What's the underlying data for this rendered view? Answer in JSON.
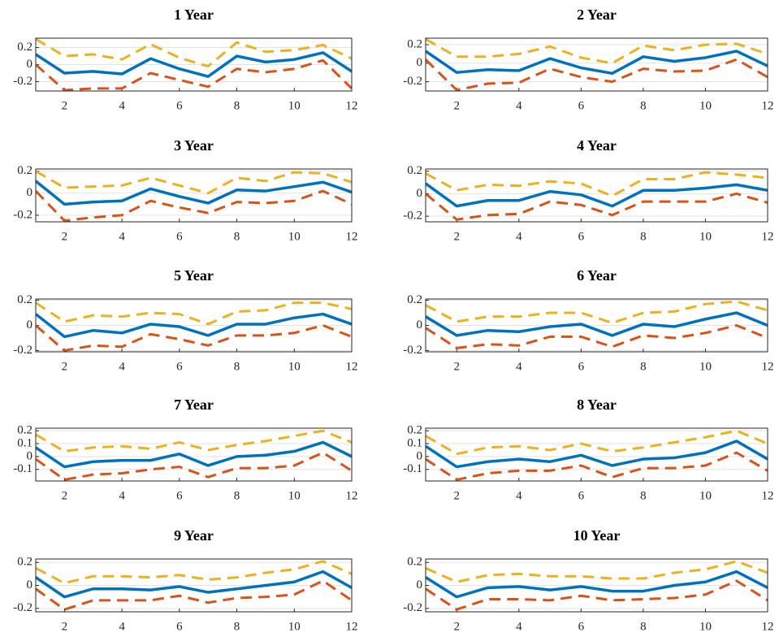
{
  "chart_data": [
    {
      "type": "line",
      "title": "1 Year",
      "x": [
        1,
        2,
        3,
        4,
        5,
        6,
        7,
        8,
        9,
        10,
        11,
        12
      ],
      "xlim": [
        1,
        12
      ],
      "xticks": [
        2,
        4,
        6,
        8,
        10,
        12
      ],
      "ylim": [
        -0.31,
        0.31
      ],
      "yticks": [
        -0.2,
        0,
        0.2
      ],
      "grid": true,
      "series": [
        {
          "color": "#0072bd",
          "values": [
            0.12,
            -0.1,
            -0.08,
            -0.11,
            0.07,
            -0.05,
            -0.14,
            0.1,
            0.03,
            0.06,
            0.14,
            -0.08
          ]
        },
        {
          "color": "#edb120",
          "values": [
            0.3,
            0.1,
            0.12,
            0.06,
            0.24,
            0.08,
            -0.02,
            0.26,
            0.15,
            0.17,
            0.23,
            0.07
          ]
        },
        {
          "color": "#d95319",
          "values": [
            0.0,
            -0.3,
            -0.28,
            -0.28,
            -0.1,
            -0.18,
            -0.26,
            -0.05,
            -0.09,
            -0.05,
            0.05,
            -0.28
          ]
        }
      ]
    },
    {
      "type": "line",
      "title": "2 Year",
      "x": [
        1,
        2,
        3,
        4,
        5,
        6,
        7,
        8,
        9,
        10,
        11,
        12
      ],
      "xlim": [
        1,
        12
      ],
      "xticks": [
        2,
        4,
        6,
        8,
        10,
        12
      ],
      "ylim": [
        -0.3,
        0.27
      ],
      "yticks": [
        -0.2,
        0,
        0.2
      ],
      "grid": true,
      "series": [
        {
          "color": "#0072bd",
          "values": [
            0.13,
            -0.1,
            -0.07,
            -0.08,
            0.05,
            -0.05,
            -0.11,
            0.07,
            0.02,
            0.06,
            0.13,
            -0.03
          ]
        },
        {
          "color": "#edb120",
          "values": [
            0.26,
            0.07,
            0.07,
            0.1,
            0.18,
            0.06,
            0.0,
            0.19,
            0.14,
            0.2,
            0.21,
            0.1
          ]
        },
        {
          "color": "#d95319",
          "values": [
            0.04,
            -0.29,
            -0.22,
            -0.21,
            -0.06,
            -0.15,
            -0.2,
            -0.06,
            -0.09,
            -0.08,
            0.04,
            -0.15
          ]
        }
      ]
    },
    {
      "type": "line",
      "title": "3 Year",
      "x": [
        1,
        2,
        3,
        4,
        5,
        6,
        7,
        8,
        9,
        10,
        11,
        12
      ],
      "xlim": [
        1,
        12
      ],
      "xticks": [
        2,
        4,
        6,
        8,
        10,
        12
      ],
      "ylim": [
        -0.26,
        0.22
      ],
      "yticks": [
        -0.2,
        0,
        0.2
      ],
      "grid": true,
      "series": [
        {
          "color": "#0072bd",
          "values": [
            0.11,
            -0.1,
            -0.08,
            -0.07,
            0.04,
            -0.03,
            -0.09,
            0.03,
            0.02,
            0.06,
            0.1,
            0.01
          ]
        },
        {
          "color": "#edb120",
          "values": [
            0.2,
            0.05,
            0.06,
            0.07,
            0.14,
            0.07,
            0.0,
            0.14,
            0.11,
            0.19,
            0.18,
            0.1
          ]
        },
        {
          "color": "#d95319",
          "values": [
            0.02,
            -0.25,
            -0.22,
            -0.2,
            -0.07,
            -0.13,
            -0.18,
            -0.08,
            -0.09,
            -0.07,
            0.02,
            -0.1
          ]
        }
      ]
    },
    {
      "type": "line",
      "title": "4 Year",
      "x": [
        1,
        2,
        3,
        4,
        5,
        6,
        7,
        8,
        9,
        10,
        11,
        12
      ],
      "xlim": [
        1,
        12
      ],
      "xticks": [
        2,
        4,
        6,
        8,
        10,
        12
      ],
      "ylim": [
        -0.25,
        0.22
      ],
      "yticks": [
        -0.2,
        0,
        0.2
      ],
      "grid": true,
      "series": [
        {
          "color": "#0072bd",
          "values": [
            0.09,
            -0.11,
            -0.06,
            -0.06,
            0.02,
            -0.01,
            -0.11,
            0.03,
            0.03,
            0.05,
            0.08,
            0.03
          ]
        },
        {
          "color": "#edb120",
          "values": [
            0.18,
            0.03,
            0.08,
            0.07,
            0.11,
            0.09,
            -0.02,
            0.13,
            0.13,
            0.19,
            0.17,
            0.14
          ]
        },
        {
          "color": "#d95319",
          "values": [
            0.0,
            -0.23,
            -0.19,
            -0.18,
            -0.07,
            -0.1,
            -0.19,
            -0.07,
            -0.07,
            -0.07,
            0.0,
            -0.08
          ]
        }
      ]
    },
    {
      "type": "line",
      "title": "5 Year",
      "x": [
        1,
        2,
        3,
        4,
        5,
        6,
        7,
        8,
        9,
        10,
        11,
        12
      ],
      "xlim": [
        1,
        12
      ],
      "xticks": [
        2,
        4,
        6,
        8,
        10,
        12
      ],
      "ylim": [
        -0.21,
        0.21
      ],
      "yticks": [
        -0.2,
        0,
        0.2
      ],
      "grid": true,
      "series": [
        {
          "color": "#0072bd",
          "values": [
            0.09,
            -0.09,
            -0.04,
            -0.06,
            0.01,
            -0.01,
            -0.08,
            0.01,
            0.01,
            0.06,
            0.09,
            0.01
          ]
        },
        {
          "color": "#edb120",
          "values": [
            0.18,
            0.03,
            0.08,
            0.07,
            0.1,
            0.09,
            0.01,
            0.11,
            0.12,
            0.18,
            0.18,
            0.13
          ]
        },
        {
          "color": "#d95319",
          "values": [
            0.0,
            -0.2,
            -0.16,
            -0.17,
            -0.07,
            -0.11,
            -0.16,
            -0.08,
            -0.08,
            -0.06,
            0.0,
            -0.09
          ]
        }
      ]
    },
    {
      "type": "line",
      "title": "6 Year",
      "x": [
        1,
        2,
        3,
        4,
        5,
        6,
        7,
        8,
        9,
        10,
        11,
        12
      ],
      "xlim": [
        1,
        12
      ],
      "xticks": [
        2,
        4,
        6,
        8,
        10,
        12
      ],
      "ylim": [
        -0.21,
        0.21
      ],
      "yticks": [
        -0.2,
        0,
        0.2
      ],
      "grid": true,
      "series": [
        {
          "color": "#0072bd",
          "values": [
            0.07,
            -0.08,
            -0.04,
            -0.05,
            -0.01,
            0.01,
            -0.08,
            0.01,
            -0.01,
            0.05,
            0.1,
            0.0
          ]
        },
        {
          "color": "#edb120",
          "values": [
            0.16,
            0.03,
            0.07,
            0.07,
            0.1,
            0.1,
            0.02,
            0.1,
            0.11,
            0.17,
            0.19,
            0.12
          ]
        },
        {
          "color": "#d95319",
          "values": [
            -0.02,
            -0.18,
            -0.15,
            -0.16,
            -0.09,
            -0.09,
            -0.17,
            -0.08,
            -0.1,
            -0.06,
            0.0,
            -0.1
          ]
        }
      ]
    },
    {
      "type": "line",
      "title": "7 Year",
      "x": [
        1,
        2,
        3,
        4,
        5,
        6,
        7,
        8,
        9,
        10,
        11,
        12
      ],
      "xlim": [
        1,
        12
      ],
      "xticks": [
        2,
        4,
        6,
        8,
        10,
        12
      ],
      "ylim": [
        -0.19,
        0.22
      ],
      "yticks": [
        -0.1,
        0,
        0.1,
        0.2
      ],
      "grid": true,
      "series": [
        {
          "color": "#0072bd",
          "values": [
            0.07,
            -0.08,
            -0.04,
            -0.03,
            -0.03,
            0.02,
            -0.07,
            0.0,
            0.01,
            0.04,
            0.11,
            0.0
          ]
        },
        {
          "color": "#edb120",
          "values": [
            0.17,
            0.04,
            0.07,
            0.08,
            0.06,
            0.11,
            0.05,
            0.09,
            0.12,
            0.16,
            0.2,
            0.11
          ]
        },
        {
          "color": "#d95319",
          "values": [
            -0.02,
            -0.18,
            -0.14,
            -0.13,
            -0.1,
            -0.08,
            -0.16,
            -0.09,
            -0.09,
            -0.07,
            0.03,
            -0.11
          ]
        }
      ]
    },
    {
      "type": "line",
      "title": "8 Year",
      "x": [
        1,
        2,
        3,
        4,
        5,
        6,
        7,
        8,
        9,
        10,
        11,
        12
      ],
      "xlim": [
        1,
        12
      ],
      "xticks": [
        2,
        4,
        6,
        8,
        10,
        12
      ],
      "ylim": [
        -0.19,
        0.22
      ],
      "yticks": [
        -0.1,
        0,
        0.1,
        0.2
      ],
      "grid": true,
      "series": [
        {
          "color": "#0072bd",
          "values": [
            0.08,
            -0.08,
            -0.04,
            -0.02,
            -0.04,
            0.01,
            -0.07,
            -0.02,
            -0.01,
            0.03,
            0.12,
            -0.02
          ]
        },
        {
          "color": "#edb120",
          "values": [
            0.16,
            0.02,
            0.07,
            0.08,
            0.05,
            0.1,
            0.04,
            0.07,
            0.11,
            0.15,
            0.2,
            0.1
          ]
        },
        {
          "color": "#d95319",
          "values": [
            -0.02,
            -0.18,
            -0.13,
            -0.11,
            -0.11,
            -0.07,
            -0.16,
            -0.09,
            -0.09,
            -0.07,
            0.03,
            -0.11
          ]
        }
      ]
    },
    {
      "type": "line",
      "title": "9 Year",
      "x": [
        1,
        2,
        3,
        4,
        5,
        6,
        7,
        8,
        9,
        10,
        11,
        12
      ],
      "xlim": [
        1,
        12
      ],
      "xticks": [
        2,
        4,
        6,
        8,
        10,
        12
      ],
      "ylim": [
        -0.23,
        0.23
      ],
      "yticks": [
        -0.2,
        0,
        0.2
      ],
      "grid": true,
      "series": [
        {
          "color": "#0072bd",
          "values": [
            0.07,
            -0.1,
            -0.03,
            -0.03,
            -0.04,
            -0.01,
            -0.06,
            -0.03,
            0.0,
            0.03,
            0.12,
            -0.02
          ]
        },
        {
          "color": "#edb120",
          "values": [
            0.15,
            0.02,
            0.08,
            0.08,
            0.07,
            0.09,
            0.05,
            0.07,
            0.11,
            0.14,
            0.21,
            0.1
          ]
        },
        {
          "color": "#d95319",
          "values": [
            -0.03,
            -0.21,
            -0.13,
            -0.13,
            -0.13,
            -0.09,
            -0.15,
            -0.11,
            -0.1,
            -0.08,
            0.04,
            -0.13
          ]
        }
      ]
    },
    {
      "type": "line",
      "title": "10 Year",
      "x": [
        1,
        2,
        3,
        4,
        5,
        6,
        7,
        8,
        9,
        10,
        11,
        12
      ],
      "xlim": [
        1,
        12
      ],
      "xticks": [
        2,
        4,
        6,
        8,
        10,
        12
      ],
      "ylim": [
        -0.23,
        0.23
      ],
      "yticks": [
        -0.2,
        0,
        0.2
      ],
      "grid": true,
      "series": [
        {
          "color": "#0072bd",
          "values": [
            0.07,
            -0.1,
            -0.02,
            -0.01,
            -0.04,
            -0.01,
            -0.05,
            -0.05,
            0.0,
            0.03,
            0.12,
            -0.02
          ]
        },
        {
          "color": "#edb120",
          "values": [
            0.15,
            0.03,
            0.09,
            0.1,
            0.08,
            0.08,
            0.06,
            0.06,
            0.11,
            0.14,
            0.21,
            0.11
          ]
        },
        {
          "color": "#d95319",
          "values": [
            -0.03,
            -0.21,
            -0.12,
            -0.12,
            -0.13,
            -0.09,
            -0.13,
            -0.12,
            -0.11,
            -0.08,
            0.04,
            -0.13
          ]
        }
      ]
    }
  ]
}
